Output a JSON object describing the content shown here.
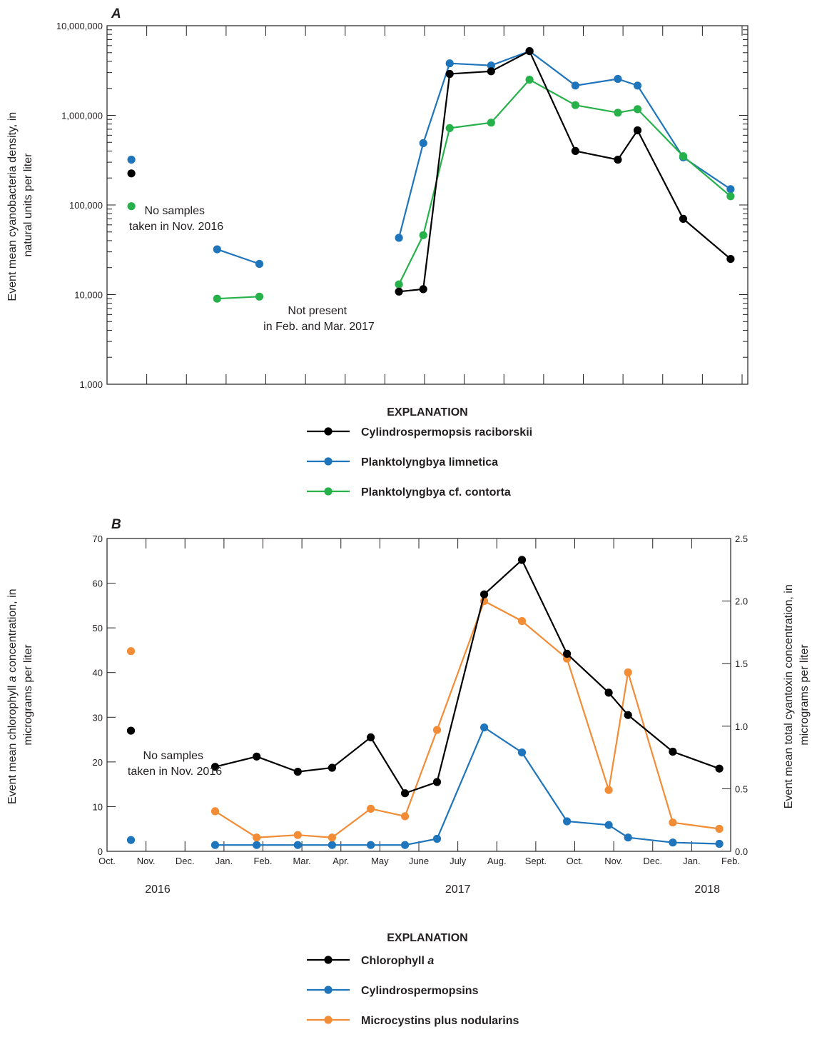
{
  "chart_data": [
    {
      "panel": "A",
      "type": "line",
      "scale": "log",
      "ylabel": [
        "Event mean cyanobacteria density, in",
        "natural units per liter"
      ],
      "ylim": [
        1000,
        10000000
      ],
      "yticks": [
        "1,000",
        "10,000",
        "100,000",
        "1,000,000",
        "10,000,000"
      ],
      "notes": [
        [
          "No samples",
          "taken in Nov. 2016"
        ],
        [
          "Not present",
          "in Feb. and Mar. 2017"
        ]
      ],
      "legend_title": "EXPLANATION",
      "series": [
        {
          "name": "Cylindrospermopsis raciborskii",
          "color": "#000000",
          "segments": [
            [
              [
                "2016-10-20",
                225000
              ]
            ],
            [
              [
                "2017-05-12",
                10800
              ],
              [
                "2017-05-31",
                11500
              ],
              [
                "2017-06-20",
                2900000
              ],
              [
                "2017-07-22",
                3100000
              ],
              [
                "2017-08-21",
                5200000
              ],
              [
                "2017-09-25",
                400000
              ],
              [
                "2017-10-28",
                320000
              ],
              [
                "2017-11-12",
                680000
              ],
              [
                "2017-12-17",
                70000
              ],
              [
                "2018-01-23",
                25000
              ]
            ]
          ]
        },
        {
          "name": "Planktolyngbya limnetica",
          "color": "#1f75bb",
          "segments": [
            [
              [
                "2016-10-20",
                320000
              ]
            ],
            [
              [
                "2016-12-25",
                32000
              ],
              [
                "2017-01-27",
                22000
              ]
            ],
            [
              [
                "2017-05-12",
                43000
              ],
              [
                "2017-05-31",
                490000
              ],
              [
                "2017-06-20",
                3800000
              ],
              [
                "2017-07-22",
                3600000
              ],
              [
                "2017-08-21",
                5200000
              ],
              [
                "2017-09-25",
                2150000
              ],
              [
                "2017-10-28",
                2550000
              ],
              [
                "2017-11-12",
                2150000
              ],
              [
                "2017-12-17",
                340000
              ],
              [
                "2018-01-23",
                150000
              ]
            ]
          ]
        },
        {
          "name": "Planktolyngbya cf. contorta",
          "color": "#27b14a",
          "segments": [
            [
              [
                "2016-10-20",
                97000
              ]
            ],
            [
              [
                "2016-12-25",
                9000
              ],
              [
                "2017-01-27",
                9500
              ]
            ],
            [
              [
                "2017-05-12",
                13000
              ],
              [
                "2017-05-31",
                46000
              ],
              [
                "2017-06-20",
                720000
              ],
              [
                "2017-07-22",
                830000
              ],
              [
                "2017-08-21",
                2500000
              ],
              [
                "2017-09-25",
                1300000
              ],
              [
                "2017-10-28",
                1070000
              ],
              [
                "2017-11-12",
                1170000
              ],
              [
                "2017-12-17",
                350000
              ],
              [
                "2018-01-23",
                125000
              ]
            ]
          ]
        }
      ]
    },
    {
      "panel": "B",
      "type": "line",
      "ylabel_left": [
        "Event mean chlorophyll a concentration, in",
        "micrograms per liter"
      ],
      "ylabel_right": [
        "Event mean total cyantoxin concentration, in",
        "micrograms per liter"
      ],
      "ylim_left": [
        0,
        70
      ],
      "ylim_right": [
        0,
        2.5
      ],
      "yticks_left": [
        "0",
        "10",
        "20",
        "30",
        "40",
        "50",
        "60",
        "70"
      ],
      "yticks_right": [
        "0.0",
        "0.5",
        "1.0",
        "1.5",
        "2.0",
        "2.5"
      ],
      "x_months": [
        "Oct.",
        "Nov.",
        "Dec.",
        "Jan.",
        "Feb.",
        "Mar.",
        "Apr.",
        "May",
        "June",
        "July",
        "Aug.",
        "Sept.",
        "Oct.",
        "Nov.",
        "Dec.",
        "Jan.",
        "Feb."
      ],
      "x_years": [
        "2016",
        "2017",
        "2018"
      ],
      "notes": [
        [
          "No samples",
          "taken in Nov. 2016"
        ]
      ],
      "legend_title": "EXPLANATION",
      "series": [
        {
          "name": "Chlorophyll a",
          "color": "#000000",
          "axis": "left",
          "segments": [
            [
              [
                "2016-10-20",
                27
              ]
            ],
            [
              [
                "2016-12-25",
                18.9
              ],
              [
                "2017-01-27",
                21.2
              ],
              [
                "2017-02-26",
                17.8
              ],
              [
                "2017-03-25",
                18.7
              ],
              [
                "2017-04-24",
                25.5
              ],
              [
                "2017-05-21",
                13
              ],
              [
                "2017-06-15",
                15.5
              ],
              [
                "2017-07-22",
                57.5
              ],
              [
                "2017-08-21",
                65.2
              ],
              [
                "2017-09-25",
                44.2
              ],
              [
                "2017-10-28",
                35.5
              ],
              [
                "2017-11-12",
                30.5
              ],
              [
                "2017-12-17",
                22.3
              ],
              [
                "2018-01-23",
                18.5
              ]
            ]
          ]
        },
        {
          "name": "Cylindrospermopsins",
          "color": "#1f75bb",
          "axis": "right",
          "segments": [
            [
              [
                "2016-10-20",
                0.09
              ]
            ],
            [
              [
                "2016-12-25",
                0.05
              ],
              [
                "2017-01-27",
                0.05
              ],
              [
                "2017-02-26",
                0.05
              ],
              [
                "2017-03-25",
                0.05
              ],
              [
                "2017-04-24",
                0.05
              ],
              [
                "2017-05-21",
                0.05
              ],
              [
                "2017-06-15",
                0.1
              ],
              [
                "2017-07-22",
                0.99
              ],
              [
                "2017-08-21",
                0.79
              ],
              [
                "2017-09-25",
                0.24
              ],
              [
                "2017-10-28",
                0.21
              ],
              [
                "2017-11-12",
                0.11
              ],
              [
                "2017-12-17",
                0.07
              ],
              [
                "2018-01-23",
                0.06
              ]
            ]
          ]
        },
        {
          "name": "Microcystins plus nodularins",
          "color": "#f28c36",
          "axis": "right",
          "segments": [
            [
              [
                "2016-10-20",
                1.6
              ]
            ],
            [
              [
                "2016-12-25",
                0.32
              ],
              [
                "2017-01-27",
                0.11
              ],
              [
                "2017-02-26",
                0.13
              ],
              [
                "2017-03-25",
                0.11
              ],
              [
                "2017-04-24",
                0.34
              ],
              [
                "2017-05-21",
                0.28
              ],
              [
                "2017-06-15",
                0.97
              ],
              [
                "2017-07-22",
                2.0
              ],
              [
                "2017-08-21",
                1.84
              ],
              [
                "2017-09-25",
                1.54
              ],
              [
                "2017-10-28",
                0.49
              ],
              [
                "2017-11-12",
                1.43
              ],
              [
                "2017-12-17",
                0.23
              ],
              [
                "2018-01-23",
                0.18
              ]
            ]
          ]
        }
      ]
    }
  ]
}
